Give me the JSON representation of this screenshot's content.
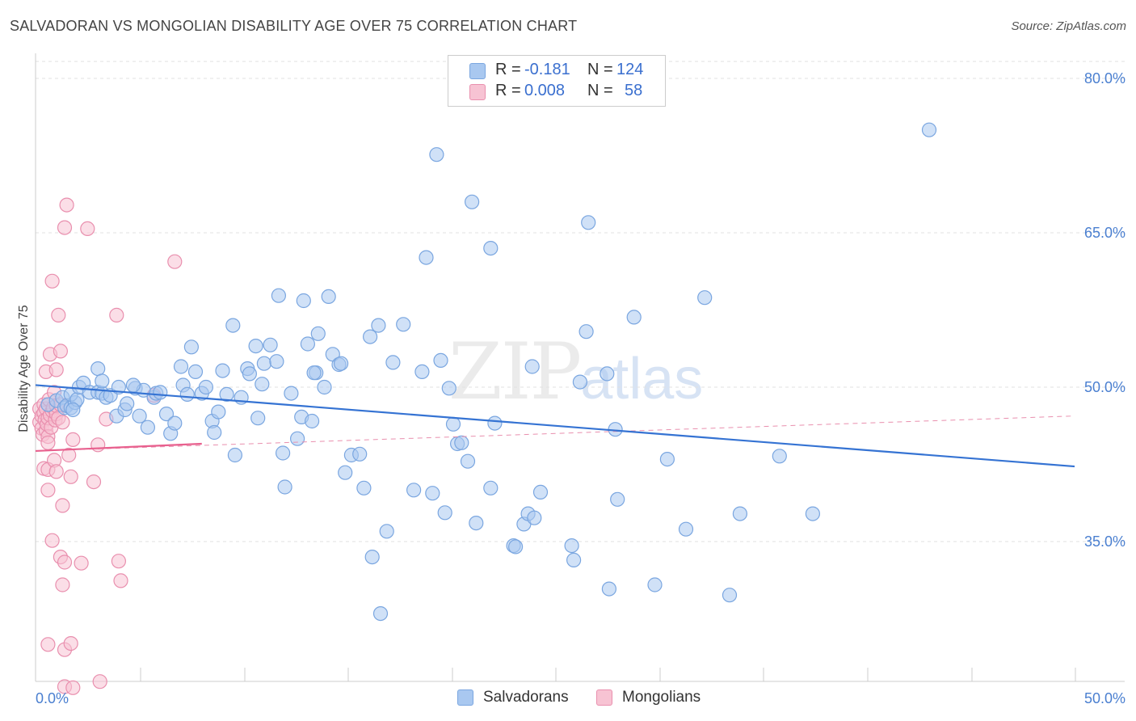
{
  "header": {
    "title": "SALVADORAN VS MONGOLIAN DISABILITY AGE OVER 75 CORRELATION CHART",
    "source": "Source: ZipAtlas.com"
  },
  "watermark": {
    "zip": "ZIP",
    "atlas": "atlas"
  },
  "legend": {
    "rows": [
      {
        "r_label": "R =",
        "r_value": "-0.181",
        "n_label": "N =",
        "n_value": "124",
        "color": "#a9c8f0",
        "border": "#7aa6e0"
      },
      {
        "r_label": "R =",
        "r_value": "0.008",
        "n_label": "N =",
        "n_value": "58",
        "color": "#f7c3d3",
        "border": "#e98fae"
      }
    ]
  },
  "bottom_legend": {
    "items": [
      {
        "label": "Salvadorans",
        "color": "#a9c8f0",
        "border": "#7aa6e0"
      },
      {
        "label": "Mongolians",
        "color": "#f7c3d3",
        "border": "#e98fae"
      }
    ]
  },
  "chart_data": {
    "type": "scatter",
    "title": "SALVADORAN VS MONGOLIAN DISABILITY AGE OVER 75 CORRELATION CHART",
    "xlabel": "",
    "ylabel": "Disability Age Over 75",
    "xlim": [
      0,
      50
    ],
    "ylim": [
      20,
      82
    ],
    "x_tick_labels": [
      "0.0%",
      "50.0%"
    ],
    "y_ticks": [
      35,
      50,
      65,
      80
    ],
    "y_tick_labels": [
      "35.0%",
      "50.0%",
      "65.0%",
      "80.0%"
    ],
    "grid": "horizontal dashed",
    "legend_position": "top-center",
    "series": [
      {
        "name": "Salvadorans",
        "color": "#7aa6e0",
        "fill": "#a9c8f0",
        "r": -0.181,
        "n": 124,
        "trend": {
          "x": [
            0,
            50
          ],
          "y": [
            50.2,
            42.3
          ]
        },
        "points": [
          [
            0.6,
            48.3
          ],
          [
            1.0,
            48.7
          ],
          [
            1.3,
            49.0
          ],
          [
            1.4,
            48.0
          ],
          [
            1.5,
            48.2
          ],
          [
            1.7,
            48.0
          ],
          [
            1.9,
            48.5
          ],
          [
            1.7,
            49.3
          ],
          [
            2.0,
            48.8
          ],
          [
            1.8,
            47.8
          ],
          [
            2.1,
            50.0
          ],
          [
            2.3,
            50.4
          ],
          [
            2.6,
            49.5
          ],
          [
            3.0,
            49.5
          ],
          [
            3.2,
            49.4
          ],
          [
            3.0,
            51.8
          ],
          [
            3.2,
            50.6
          ],
          [
            3.4,
            49.0
          ],
          [
            3.6,
            49.2
          ],
          [
            3.9,
            47.2
          ],
          [
            4.0,
            50.0
          ],
          [
            4.3,
            47.8
          ],
          [
            4.4,
            48.4
          ],
          [
            4.8,
            49.9
          ],
          [
            5.0,
            47.2
          ],
          [
            5.2,
            49.7
          ],
          [
            5.4,
            46.1
          ],
          [
            5.7,
            49.0
          ],
          [
            5.8,
            49.4
          ],
          [
            6.0,
            49.5
          ],
          [
            6.3,
            47.4
          ],
          [
            6.5,
            45.5
          ],
          [
            6.7,
            46.5
          ],
          [
            7.0,
            52.0
          ],
          [
            7.1,
            50.2
          ],
          [
            7.3,
            49.3
          ],
          [
            7.5,
            53.9
          ],
          [
            7.7,
            51.5
          ],
          [
            8.0,
            49.4
          ],
          [
            8.2,
            50.0
          ],
          [
            8.5,
            46.7
          ],
          [
            8.6,
            45.6
          ],
          [
            8.8,
            47.6
          ],
          [
            9.0,
            51.6
          ],
          [
            9.2,
            49.3
          ],
          [
            9.5,
            56.0
          ],
          [
            9.6,
            43.4
          ],
          [
            9.9,
            49.0
          ],
          [
            10.2,
            51.8
          ],
          [
            10.3,
            51.3
          ],
          [
            10.6,
            54.0
          ],
          [
            10.7,
            47.0
          ],
          [
            10.9,
            50.3
          ],
          [
            11.0,
            52.3
          ],
          [
            11.3,
            54.1
          ],
          [
            11.6,
            52.5
          ],
          [
            11.7,
            58.9
          ],
          [
            11.9,
            43.6
          ],
          [
            12.0,
            40.3
          ],
          [
            12.3,
            49.4
          ],
          [
            12.6,
            45.0
          ],
          [
            12.8,
            47.1
          ],
          [
            12.9,
            58.4
          ],
          [
            13.1,
            54.2
          ],
          [
            13.3,
            46.7
          ],
          [
            13.6,
            55.2
          ],
          [
            13.5,
            51.4
          ],
          [
            13.9,
            50.0
          ],
          [
            14.1,
            58.8
          ],
          [
            14.3,
            53.2
          ],
          [
            14.6,
            52.2
          ],
          [
            14.7,
            52.3
          ],
          [
            14.9,
            41.7
          ],
          [
            15.2,
            43.4
          ],
          [
            15.6,
            43.5
          ],
          [
            15.8,
            40.2
          ],
          [
            16.1,
            54.9
          ],
          [
            16.2,
            33.5
          ],
          [
            16.5,
            56.0
          ],
          [
            16.6,
            28.0
          ],
          [
            16.9,
            36.0
          ],
          [
            17.2,
            52.4
          ],
          [
            17.7,
            56.1
          ],
          [
            18.2,
            40.0
          ],
          [
            18.6,
            51.5
          ],
          [
            18.8,
            62.6
          ],
          [
            19.1,
            39.7
          ],
          [
            19.3,
            72.6
          ],
          [
            19.5,
            52.6
          ],
          [
            19.7,
            37.8
          ],
          [
            19.9,
            49.9
          ],
          [
            20.1,
            46.4
          ],
          [
            20.3,
            44.5
          ],
          [
            20.5,
            44.6
          ],
          [
            20.8,
            42.8
          ],
          [
            21.0,
            68.0
          ],
          [
            21.2,
            36.8
          ],
          [
            21.9,
            40.2
          ],
          [
            21.9,
            63.5
          ],
          [
            22.1,
            46.5
          ],
          [
            23.0,
            34.6
          ],
          [
            23.1,
            34.5
          ],
          [
            23.5,
            36.7
          ],
          [
            23.7,
            37.7
          ],
          [
            23.9,
            52.0
          ],
          [
            24.0,
            37.3
          ],
          [
            24.3,
            39.8
          ],
          [
            25.8,
            34.6
          ],
          [
            25.9,
            33.2
          ],
          [
            26.2,
            50.5
          ],
          [
            26.5,
            55.4
          ],
          [
            26.6,
            66.0
          ],
          [
            27.5,
            51.3
          ],
          [
            27.6,
            30.4
          ],
          [
            27.9,
            45.9
          ],
          [
            28.0,
            39.1
          ],
          [
            28.8,
            56.8
          ],
          [
            29.8,
            30.8
          ],
          [
            30.4,
            43.0
          ],
          [
            31.3,
            36.2
          ],
          [
            32.2,
            58.7
          ],
          [
            33.4,
            29.8
          ],
          [
            33.9,
            37.7
          ],
          [
            35.8,
            43.3
          ],
          [
            37.4,
            37.7
          ],
          [
            43.0,
            75.0
          ],
          [
            13.4,
            51.4
          ],
          [
            4.7,
            50.2
          ]
        ]
      },
      {
        "name": "Mongolians",
        "color": "#e98fae",
        "fill": "#f7c3d3",
        "r": 0.008,
        "n": 58,
        "trend": {
          "x": [
            0,
            8
          ],
          "y": [
            43.8,
            44.5
          ]
        },
        "trend_extended": {
          "x": [
            0,
            50
          ],
          "y": [
            43.8,
            47.2
          ]
        },
        "points": [
          [
            0.2,
            47.9
          ],
          [
            0.2,
            46.6
          ],
          [
            0.3,
            47.2
          ],
          [
            0.3,
            46.0
          ],
          [
            0.35,
            45.4
          ],
          [
            0.4,
            48.3
          ],
          [
            0.4,
            47.5
          ],
          [
            0.45,
            46.8
          ],
          [
            0.5,
            47.9
          ],
          [
            0.5,
            45.8
          ],
          [
            0.55,
            46.4
          ],
          [
            0.6,
            47.0
          ],
          [
            0.6,
            45.2
          ],
          [
            0.6,
            44.6
          ],
          [
            0.65,
            48.8
          ],
          [
            0.7,
            47.3
          ],
          [
            0.75,
            46.1
          ],
          [
            0.8,
            47.7
          ],
          [
            0.85,
            48.0
          ],
          [
            0.9,
            49.5
          ],
          [
            0.95,
            46.8
          ],
          [
            1.0,
            47.4
          ],
          [
            1.0,
            48.2
          ],
          [
            1.1,
            47.0
          ],
          [
            1.2,
            48.3
          ],
          [
            1.3,
            46.6
          ],
          [
            0.4,
            42.1
          ],
          [
            0.5,
            51.5
          ],
          [
            0.6,
            42.0
          ],
          [
            0.7,
            53.2
          ],
          [
            0.8,
            60.3
          ],
          [
            0.9,
            42.9
          ],
          [
            1.0,
            51.7
          ],
          [
            1.0,
            41.8
          ],
          [
            1.1,
            57.0
          ],
          [
            1.2,
            53.5
          ],
          [
            0.6,
            40.0
          ],
          [
            0.8,
            35.1
          ],
          [
            1.2,
            33.5
          ],
          [
            1.3,
            38.5
          ],
          [
            1.3,
            30.8
          ],
          [
            1.4,
            33.0
          ],
          [
            1.4,
            65.5
          ],
          [
            1.5,
            67.7
          ],
          [
            1.6,
            43.4
          ],
          [
            1.7,
            41.3
          ],
          [
            1.8,
            44.9
          ],
          [
            2.2,
            32.9
          ],
          [
            2.5,
            65.4
          ],
          [
            2.8,
            40.8
          ],
          [
            3.0,
            44.4
          ],
          [
            3.4,
            46.9
          ],
          [
            3.9,
            57.0
          ],
          [
            4.0,
            33.1
          ],
          [
            4.1,
            31.2
          ],
          [
            5.7,
            49.2
          ],
          [
            6.7,
            62.2
          ],
          [
            0.6,
            25.0
          ]
        ]
      },
      {
        "name": "",
        "color": "#e98fae",
        "fill": "#f7c3d3",
        "note_points_low": [
          [
            1.4,
            24.5
          ],
          [
            1.7,
            25.1
          ],
          [
            1.4,
            20.9
          ],
          [
            1.8,
            20.8
          ],
          [
            3.1,
            21.4
          ]
        ]
      }
    ]
  }
}
